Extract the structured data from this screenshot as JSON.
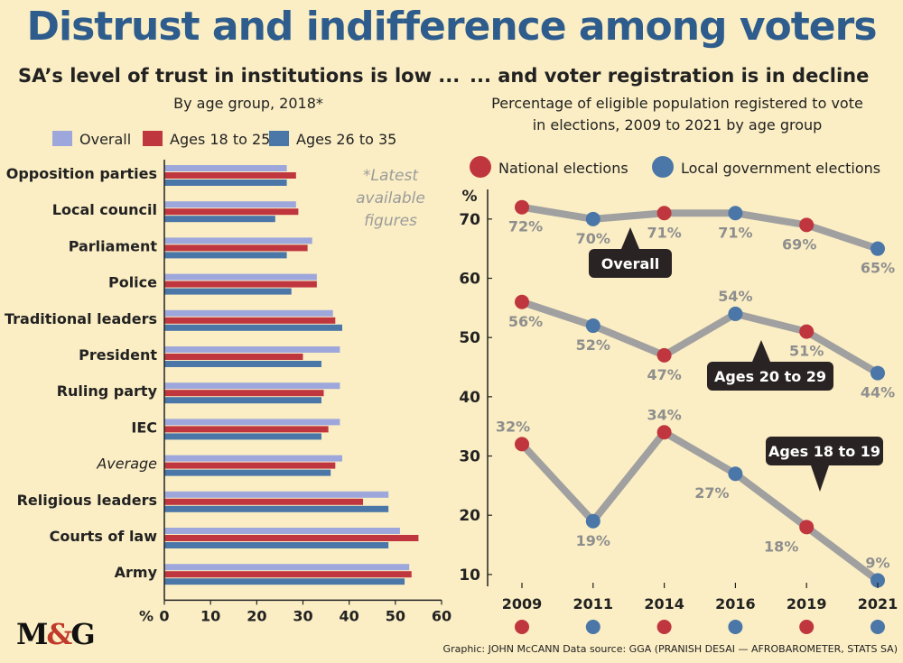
{
  "title": "Distrust and indifference among voters",
  "left": {
    "subtitle": "SA’s level of trust in institutions is low ...",
    "note_sub": "By age group, 2018*",
    "note": "*Latest available figures"
  },
  "right": {
    "subtitle": "... and voter registration is in decline",
    "desc": "Percentage of eligible population registered to vote in elections, 2009 to 2021 by age group",
    "legend_national": "National elections",
    "legend_local": "Local government elections"
  },
  "footer": "Graphic: JOHN McCANN  Data source: GGA (PRANISH DESAI — AFROBAROMETER, STATS SA)",
  "logo": {
    "m": "M",
    "amp": "&",
    "g": "G"
  },
  "colors": {
    "overall": "#9ea7db",
    "a18": "#c0363e",
    "a26": "#4a76a8",
    "national": "#c0363e",
    "local": "#4a76a8",
    "line": "#a0a0a0",
    "title": "#2e5c8c"
  },
  "chart_data": [
    {
      "type": "bar",
      "orientation": "horizontal",
      "categories": [
        "Opposition parties",
        "Local council",
        "Parliament",
        "Police",
        "Traditional leaders",
        "President",
        "Ruling party",
        "IEC",
        "Average",
        "Religious leaders",
        "Courts of law",
        "Army"
      ],
      "series": [
        {
          "name": "Overall",
          "values": [
            26.5,
            28.5,
            32,
            33,
            36.5,
            38,
            38,
            38,
            38.5,
            48.5,
            51,
            53
          ]
        },
        {
          "name": "Ages 18 to 25",
          "values": [
            28.5,
            29,
            31,
            33,
            37,
            30,
            34.5,
            35.5,
            37,
            43,
            55,
            53.5
          ]
        },
        {
          "name": "Ages 26 to 35",
          "values": [
            26.5,
            24,
            26.5,
            27.5,
            38.5,
            34,
            34,
            34,
            36,
            48.5,
            48.5,
            52
          ]
        }
      ],
      "xlim": [
        0,
        60
      ],
      "xticks": [
        0,
        10,
        20,
        30,
        40,
        50,
        60
      ],
      "xunit": "%",
      "italic_categories": [
        "Average"
      ]
    },
    {
      "type": "line",
      "x": [
        "2009",
        "2011",
        "2014",
        "2016",
        "2019",
        "2021"
      ],
      "election_type": [
        "National",
        "Local",
        "National",
        "Local",
        "National",
        "Local"
      ],
      "series": [
        {
          "name": "Overall",
          "values": [
            72,
            70,
            71,
            71,
            69,
            65
          ]
        },
        {
          "name": "Ages 20 to 29",
          "values": [
            56,
            52,
            47,
            54,
            51,
            44
          ]
        },
        {
          "name": "Ages 18 to 19",
          "values": [
            32,
            19,
            34,
            27,
            18,
            9
          ]
        }
      ],
      "ylim": [
        8,
        75
      ],
      "yticks": [
        10,
        20,
        30,
        40,
        50,
        60,
        70
      ],
      "yunit": "%"
    }
  ]
}
